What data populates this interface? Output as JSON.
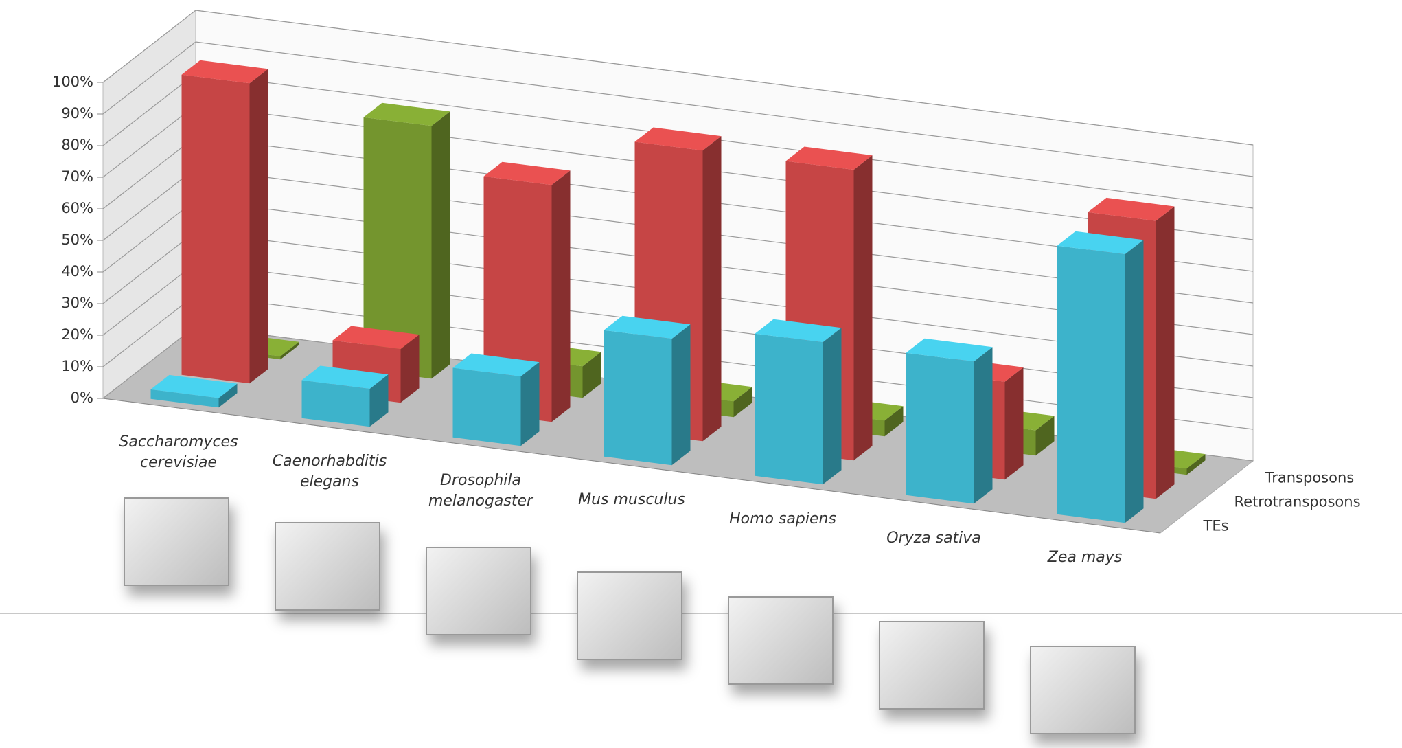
{
  "chart_data": {
    "type": "bar3d",
    "categories": [
      "Saccharomyces cerevisiae",
      "Caenorhabditis elegans",
      "Drosophila melanogaster",
      "Mus musculus",
      "Homo sapiens",
      "Oryza sativa",
      "Zea mays"
    ],
    "series": [
      {
        "name": "TEs",
        "color": "#3db3cb",
        "values": [
          3,
          12,
          22,
          40,
          45,
          45,
          85
        ]
      },
      {
        "name": "Retrotransposons",
        "color": "#c64545",
        "values": [
          95,
          17,
          75,
          92,
          92,
          31,
          88
        ]
      },
      {
        "name": "Transposons",
        "color": "#74952e",
        "values": [
          1,
          80,
          10,
          5,
          5,
          8,
          2
        ]
      }
    ],
    "ylim": [
      0,
      100
    ],
    "yticks": [
      {
        "value": 0,
        "label": "0%"
      },
      {
        "value": 10,
        "label": "10%"
      },
      {
        "value": 20,
        "label": "20%"
      },
      {
        "value": 30,
        "label": "30%"
      },
      {
        "value": 40,
        "label": "40%"
      },
      {
        "value": 50,
        "label": "50%"
      },
      {
        "value": 60,
        "label": "60%"
      },
      {
        "value": 70,
        "label": "70%"
      },
      {
        "value": 80,
        "label": "80%"
      },
      {
        "value": 90,
        "label": "90%"
      },
      {
        "value": 100,
        "label": "100%"
      }
    ],
    "grid": true
  }
}
